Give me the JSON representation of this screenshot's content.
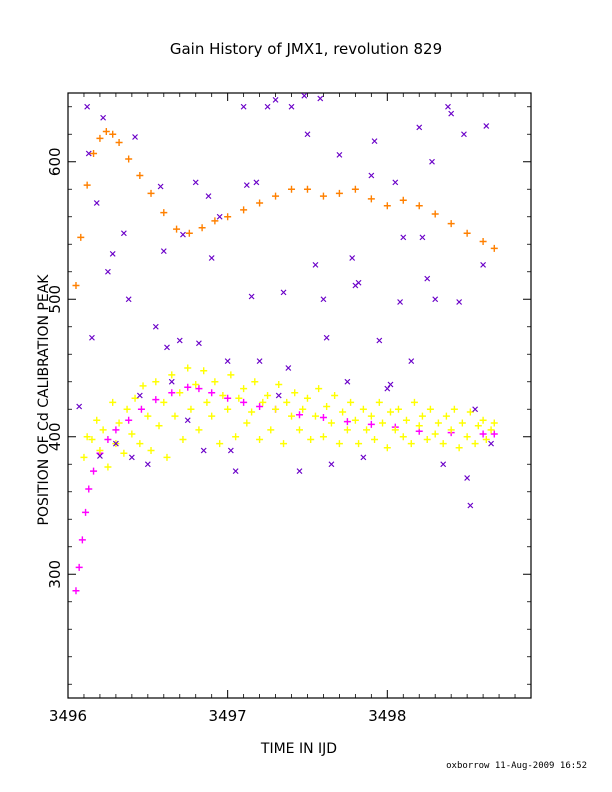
{
  "chart_data": {
    "type": "scatter",
    "title": "Gain History of JMX1, revolution 829",
    "xlabel": "TIME IN IJD",
    "ylabel": "POSITION OF Cd CALIBRATION PEAK",
    "xlim": [
      3496.0,
      3498.9
    ],
    "ylim": [
      210,
      650
    ],
    "xticks": [
      3496,
      3497,
      3498
    ],
    "xtick_labels": [
      "3496",
      "3497",
      "3498"
    ],
    "yticks": [
      300,
      400,
      500,
      600
    ],
    "ytick_labels": [
      "300",
      "400",
      "500",
      "600"
    ],
    "grid": false,
    "footer": "oxborrow 11-Aug-2009 16:52",
    "colors": {
      "upper_fit": "#ff8000",
      "lower_fit": "#ff00ff",
      "lower_points": "#ffff00",
      "outliers": "#6a00c8"
    },
    "series": [
      {
        "marker": "plus",
        "color": "#ff8000",
        "x": [
          3496.05,
          3496.08,
          3496.12,
          3496.16,
          3496.2,
          3496.24,
          3496.28,
          3496.32,
          3496.38,
          3496.45,
          3496.52,
          3496.6,
          3496.68,
          3496.76,
          3496.84,
          3496.92,
          3497.0,
          3497.1,
          3497.2,
          3497.3,
          3497.4,
          3497.5,
          3497.6,
          3497.7,
          3497.8,
          3497.9,
          3498.0,
          3498.1,
          3498.2,
          3498.3,
          3498.4,
          3498.5,
          3498.6,
          3498.67
        ],
        "y": [
          510,
          545,
          583,
          606,
          617,
          622,
          620,
          614,
          602,
          590,
          577,
          563,
          551,
          548,
          552,
          557,
          560,
          565,
          570,
          575,
          580,
          580,
          575,
          577,
          580,
          573,
          568,
          572,
          568,
          562,
          555,
          548,
          542,
          537
        ]
      },
      {
        "marker": "plus",
        "color": "#ff00ff",
        "x": [
          3496.05,
          3496.07,
          3496.09,
          3496.11,
          3496.13,
          3496.16,
          3496.2,
          3496.25,
          3496.3,
          3496.38,
          3496.46,
          3496.55,
          3496.65,
          3496.75,
          3496.82,
          3496.9,
          3497.0,
          3497.1,
          3497.2,
          3497.3,
          3497.45,
          3497.6,
          3497.75,
          3497.9,
          3498.05,
          3498.2,
          3498.4,
          3498.6,
          3498.67
        ],
        "y": [
          288,
          305,
          325,
          345,
          362,
          375,
          388,
          398,
          405,
          412,
          420,
          427,
          432,
          436,
          435,
          432,
          428,
          425,
          422,
          420,
          416,
          414,
          411,
          409,
          407,
          404,
          403,
          402,
          402
        ]
      },
      {
        "marker": "plus",
        "color": "#ffff00",
        "x": [
          3496.1,
          3496.12,
          3496.15,
          3496.18,
          3496.2,
          3496.22,
          3496.25,
          3496.28,
          3496.3,
          3496.32,
          3496.35,
          3496.37,
          3496.4,
          3496.42,
          3496.45,
          3496.47,
          3496.5,
          3496.52,
          3496.55,
          3496.57,
          3496.6,
          3496.62,
          3496.65,
          3496.67,
          3496.7,
          3496.72,
          3496.75,
          3496.77,
          3496.8,
          3496.82,
          3496.85,
          3496.87,
          3496.9,
          3496.92,
          3496.95,
          3496.97,
          3497.0,
          3497.02,
          3497.05,
          3497.07,
          3497.1,
          3497.12,
          3497.15,
          3497.17,
          3497.2,
          3497.22,
          3497.25,
          3497.27,
          3497.3,
          3497.32,
          3497.35,
          3497.37,
          3497.4,
          3497.42,
          3497.45,
          3497.47,
          3497.5,
          3497.52,
          3497.55,
          3497.57,
          3497.6,
          3497.62,
          3497.65,
          3497.67,
          3497.7,
          3497.72,
          3497.75,
          3497.77,
          3497.8,
          3497.82,
          3497.85,
          3497.87,
          3497.9,
          3497.92,
          3497.95,
          3497.97,
          3498.0,
          3498.02,
          3498.05,
          3498.07,
          3498.1,
          3498.12,
          3498.15,
          3498.17,
          3498.2,
          3498.22,
          3498.25,
          3498.27,
          3498.3,
          3498.32,
          3498.35,
          3498.37,
          3498.4,
          3498.42,
          3498.45,
          3498.47,
          3498.5,
          3498.52,
          3498.55,
          3498.57,
          3498.6,
          3498.62,
          3498.65,
          3498.67
        ],
        "y": [
          385,
          400,
          398,
          412,
          390,
          405,
          378,
          425,
          395,
          410,
          388,
          420,
          402,
          428,
          395,
          437,
          415,
          390,
          440,
          408,
          425,
          385,
          445,
          415,
          432,
          398,
          450,
          420,
          438,
          405,
          448,
          425,
          415,
          440,
          395,
          430,
          420,
          445,
          400,
          428,
          435,
          410,
          418,
          440,
          398,
          425,
          430,
          405,
          420,
          438,
          395,
          425,
          415,
          432,
          405,
          420,
          428,
          398,
          415,
          435,
          400,
          422,
          410,
          430,
          395,
          418,
          405,
          425,
          412,
          395,
          420,
          405,
          415,
          398,
          425,
          410,
          392,
          418,
          405,
          420,
          400,
          412,
          395,
          425,
          408,
          415,
          398,
          420,
          402,
          410,
          395,
          415,
          405,
          420,
          392,
          410,
          400,
          418,
          395,
          408,
          412,
          398,
          405,
          410
        ]
      },
      {
        "marker": "x",
        "color": "#6a00c8",
        "x": [
          3496.07,
          3496.12,
          3496.15,
          3496.18,
          3496.22,
          3496.25,
          3496.3,
          3496.35,
          3496.4,
          3496.45,
          3496.5,
          3496.55,
          3496.6,
          3496.65,
          3496.7,
          3496.75,
          3496.8,
          3496.85,
          3496.9,
          3496.95,
          3497.0,
          3497.05,
          3497.1,
          3497.15,
          3497.2,
          3497.25,
          3497.3,
          3497.35,
          3497.4,
          3497.45,
          3497.5,
          3497.55,
          3497.6,
          3497.65,
          3497.7,
          3497.75,
          3497.8,
          3497.85,
          3497.9,
          3497.95,
          3498.0,
          3498.05,
          3498.1,
          3498.15,
          3498.2,
          3498.25,
          3498.3,
          3498.35,
          3498.4,
          3498.45,
          3498.5,
          3498.55,
          3498.6,
          3498.65,
          3496.13,
          3496.28,
          3496.42,
          3496.58,
          3496.72,
          3496.88,
          3497.02,
          3497.18,
          3497.32,
          3497.48,
          3497.62,
          3497.78,
          3497.92,
          3498.08,
          3498.22,
          3498.38,
          3498.52,
          3498.62,
          3496.2,
          3496.38,
          3496.62,
          3496.82,
          3497.12,
          3497.38,
          3497.58,
          3497.82,
          3498.02,
          3498.28,
          3498.48
        ],
        "y": [
          422,
          640,
          472,
          570,
          632,
          520,
          395,
          548,
          385,
          430,
          380,
          480,
          535,
          440,
          470,
          412,
          585,
          390,
          530,
          560,
          455,
          375,
          640,
          502,
          455,
          640,
          645,
          505,
          640,
          375,
          620,
          525,
          500,
          380,
          605,
          440,
          510,
          385,
          590,
          470,
          435,
          585,
          545,
          455,
          625,
          515,
          500,
          380,
          635,
          498,
          370,
          420,
          525,
          395,
          606,
          533,
          618,
          582,
          547,
          575,
          390,
          585,
          430,
          648,
          472,
          530,
          615,
          498,
          545,
          640,
          350,
          626,
          386,
          500,
          465,
          468,
          583,
          450,
          646,
          512,
          438,
          600,
          620
        ]
      }
    ]
  }
}
